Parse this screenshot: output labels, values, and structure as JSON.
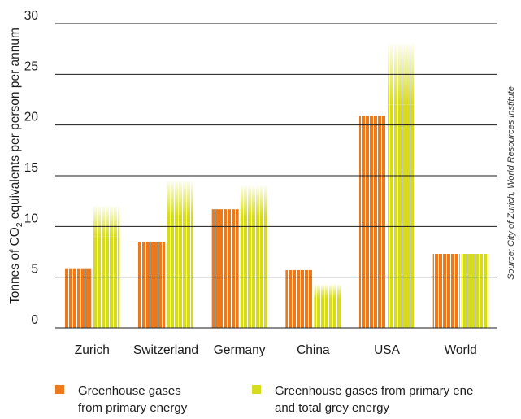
{
  "chart_data": {
    "type": "bar",
    "ylabel_prefix": "Tonnes of CO",
    "ylabel_sub": "2",
    "ylabel_suffix": " equivalents per person per annum",
    "source": "Source: City of Zurich, World Resources Institute",
    "ylim": [
      0,
      30
    ],
    "yticks": [
      "0",
      "5",
      "10",
      "15",
      "20",
      "25",
      "30"
    ],
    "categories": [
      "Zurich",
      "Switzerland",
      "Germany",
      "China",
      "USA",
      "World"
    ],
    "series": [
      {
        "legend_line1": "Greenhouse gases",
        "legend_line2": "from primary energy",
        "color": "#ec7a1c",
        "values": [
          5.8,
          8.5,
          11.7,
          5.7,
          20.9,
          7.3
        ]
      },
      {
        "legend_line1": "Greenhouse gases from primary ene",
        "legend_line2": "and total grey energy",
        "color": "#d6dc1c",
        "values": [
          12.0,
          14.5,
          14.0,
          4.3,
          28.0,
          7.3
        ],
        "solid_values": [
          9.0,
          11.0,
          11.0,
          3.0,
          22.0,
          7.3
        ]
      }
    ]
  }
}
